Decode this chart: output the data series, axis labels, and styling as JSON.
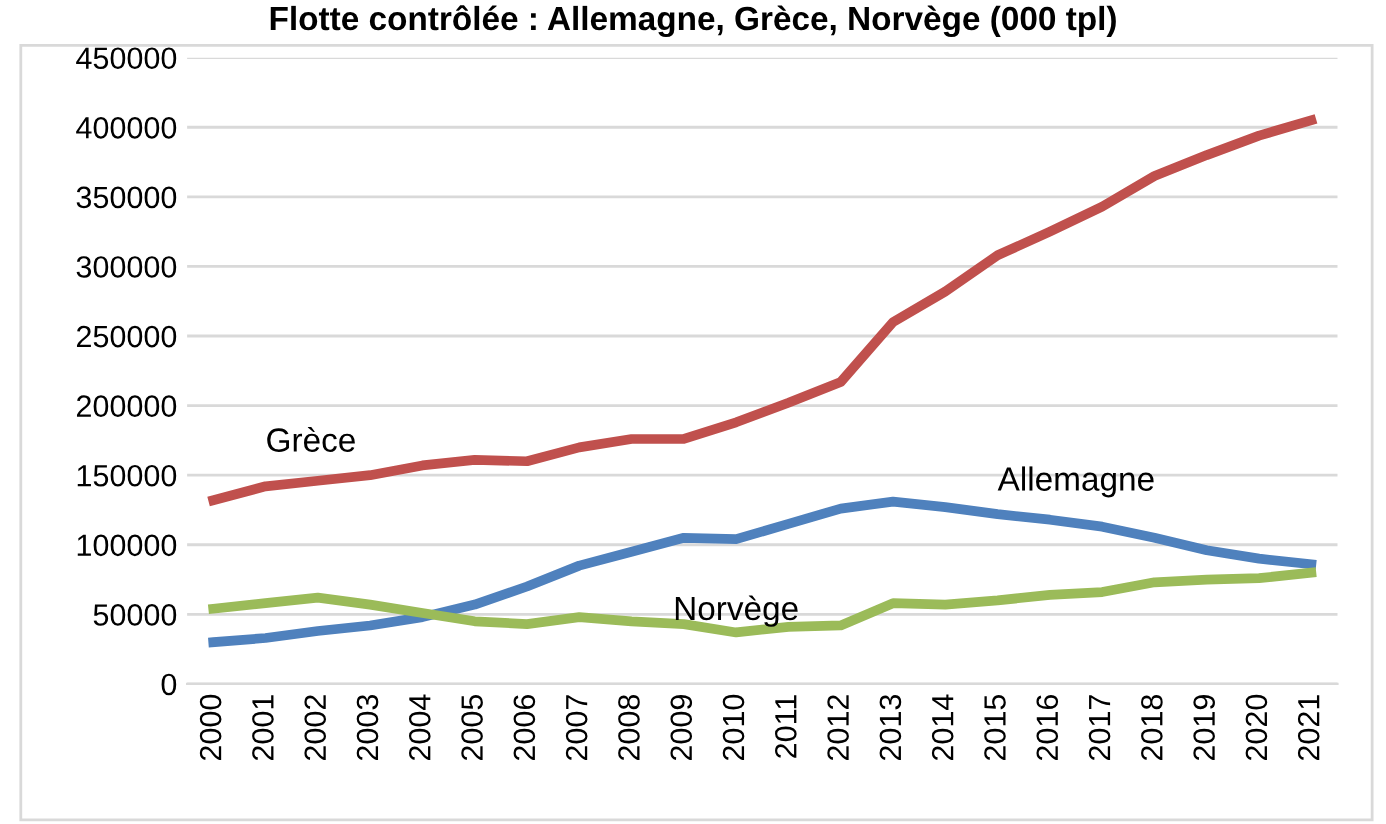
{
  "chart_data": {
    "type": "line",
    "title": "Flotte contrôlée : Allemagne, Grèce, Norvège (000 tpl)",
    "categories": [
      "2000",
      "2001",
      "2002",
      "2003",
      "2004",
      "2005",
      "2006",
      "2007",
      "2008",
      "2009",
      "2010",
      "2011",
      "2012",
      "2013",
      "2014",
      "2015",
      "2016",
      "2017",
      "2018",
      "2019",
      "2020",
      "2021"
    ],
    "series": [
      {
        "name": "Grèce",
        "color": "#c0504d",
        "values": [
          132000,
          142000,
          146000,
          150000,
          157000,
          161000,
          160000,
          170000,
          176000,
          176000,
          188000,
          202000,
          217000,
          260000,
          282000,
          308000,
          325000,
          343000,
          365000,
          380000,
          394000,
          405000
        ]
      },
      {
        "name": "Allemagne",
        "color": "#4f81bd",
        "values": [
          30000,
          33000,
          38000,
          42000,
          48000,
          57000,
          70000,
          85000,
          95000,
          105000,
          104000,
          115000,
          126000,
          131000,
          127000,
          122000,
          118000,
          113000,
          105000,
          96000,
          90000,
          86000
        ]
      },
      {
        "name": "Norvège",
        "color": "#9bbb59",
        "values": [
          54000,
          58000,
          62000,
          57000,
          51000,
          45000,
          43000,
          48000,
          45000,
          43000,
          37000,
          41000,
          42000,
          58000,
          57000,
          60000,
          64000,
          66000,
          73000,
          75000,
          76000,
          80000
        ]
      }
    ],
    "ylim": [
      0,
      450000
    ],
    "yticks": [
      0,
      50000,
      100000,
      150000,
      200000,
      250000,
      300000,
      350000,
      400000,
      450000
    ],
    "grid": "y",
    "legend": false,
    "marker": "none",
    "line_style": "solid"
  }
}
